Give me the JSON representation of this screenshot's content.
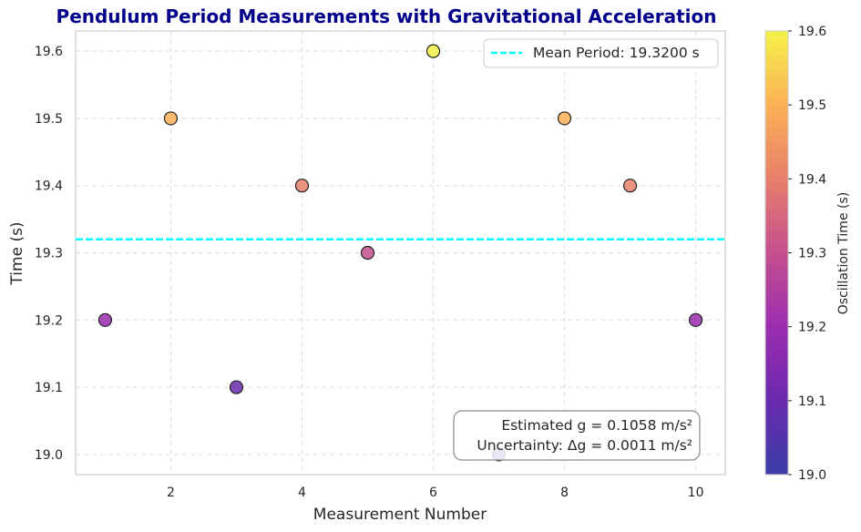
{
  "chart_data": {
    "type": "scatter",
    "title": "Pendulum Period Measurements with Gravitational Acceleration",
    "xlabel": "Measurement Number",
    "ylabel": "Time (s)",
    "x": [
      1,
      2,
      3,
      4,
      5,
      6,
      7,
      8,
      9,
      10
    ],
    "y": [
      19.2,
      19.5,
      19.1,
      19.4,
      19.3,
      19.6,
      19.0,
      19.5,
      19.4,
      19.2
    ],
    "xlim": [
      0.55,
      10.45
    ],
    "ylim": [
      18.97,
      19.63
    ],
    "xticks": [
      "2",
      "4",
      "6",
      "8",
      "10"
    ],
    "yticks": [
      "19.0",
      "19.1",
      "19.2",
      "19.3",
      "19.4",
      "19.5",
      "19.6"
    ],
    "grid": true,
    "mean_line": {
      "value": 19.32,
      "label": "Mean Period: 19.3200 s",
      "color": "#00ffff"
    },
    "legend_position": "top-right",
    "annotation": {
      "line1": "Estimated g = 0.1058 m/s²",
      "line2": "Uncertainty: Δg = 0.0011 m/s²",
      "position": "bottom-right"
    },
    "colorbar": {
      "label": "Oscillation Time (s)",
      "colormap": "plasma",
      "range": [
        19.0,
        19.6
      ],
      "ticks": [
        "19.0",
        "19.1",
        "19.2",
        "19.3",
        "19.4",
        "19.5",
        "19.6"
      ]
    },
    "colors": {
      "title": "#00008b",
      "grid": "#dddddd",
      "frame": "#cccccc"
    }
  }
}
